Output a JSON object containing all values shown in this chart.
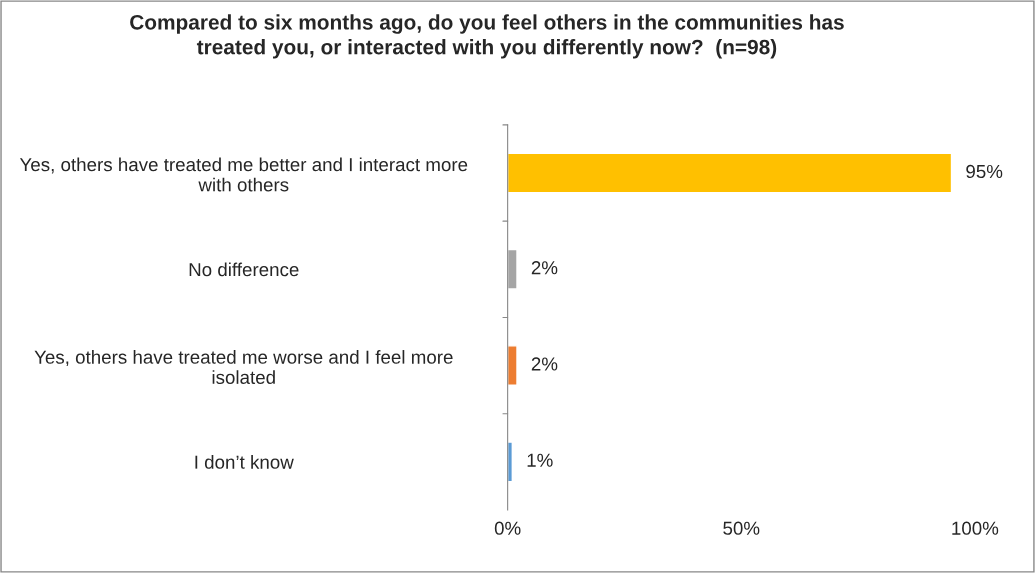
{
  "chart_data": {
    "type": "bar",
    "orientation": "horizontal",
    "title": "Compared to six months ago, do you feel others in the communities has treated you, or interacted with you differently now?  (n=98)",
    "categories": [
      "Yes, others have treated me better and I interact more with others",
      "No difference",
      "Yes, others have treated me worse and I feel more isolated",
      "I don’t know"
    ],
    "values": [
      95,
      2,
      2,
      1
    ],
    "colors": [
      "#ffc000",
      "#a5a5a5",
      "#ed7d31",
      "#5b9bd5"
    ],
    "value_labels": [
      "95%",
      "2%",
      "2%",
      "1%"
    ],
    "xlim": [
      0,
      100
    ],
    "xticks": [
      {
        "value": 0,
        "label": "0%"
      },
      {
        "value": 50,
        "label": "50%"
      },
      {
        "value": 100,
        "label": "100%"
      }
    ],
    "grid": false,
    "legend": false
  }
}
